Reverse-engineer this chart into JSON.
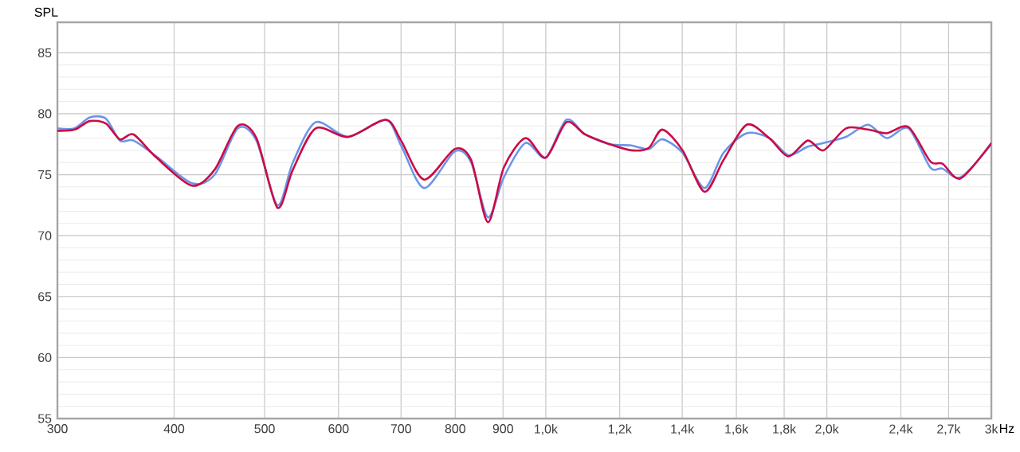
{
  "chart_data": {
    "type": "line",
    "ylabel": "SPL",
    "log": "x",
    "grid": true,
    "xlim": [
      300,
      3000
    ],
    "ylim": [
      55,
      87.5
    ],
    "xticks": [
      300,
      400,
      500,
      600,
      700,
      800,
      900,
      {
        "value": 1000,
        "label": "1,0k"
      },
      {
        "value": 1200,
        "label": "1,2k"
      },
      {
        "value": 1400,
        "label": "1,4k"
      },
      {
        "value": 1600,
        "label": "1,6k"
      },
      {
        "value": 1800,
        "label": "1,8k"
      },
      {
        "value": 2000,
        "label": "2,0k"
      },
      {
        "value": 2400,
        "label": "2,4k"
      },
      {
        "value": 2700,
        "label": "2,7k"
      },
      {
        "value": 3000,
        "label": "3k"
      }
    ],
    "xlabel": "Hz",
    "yticks": [
      55,
      60,
      65,
      70,
      75,
      80,
      85
    ],
    "x": [
      300,
      313,
      325,
      338,
      350,
      362,
      383,
      418,
      442,
      468,
      490,
      516,
      536,
      567,
      614,
      674,
      700,
      741,
      799,
      832,
      867,
      902,
      951,
      1000,
      1052,
      1102,
      1171,
      1234,
      1289,
      1333,
      1401,
      1479,
      1550,
      1641,
      1735,
      1819,
      1908,
      1984,
      2096,
      2213,
      2318,
      2446,
      2580,
      2659,
      2782,
      3000
    ],
    "series": [
      {
        "color": "#6b95e8",
        "values": [
          78.8,
          78.8,
          79.7,
          79.6,
          77.8,
          77.8,
          76.5,
          74.3,
          75.0,
          78.8,
          77.8,
          72.5,
          76.0,
          79.3,
          78.1,
          79.5,
          77.4,
          73.9,
          76.9,
          76.0,
          71.5,
          74.8,
          77.6,
          76.4,
          79.5,
          78.3,
          77.5,
          77.4,
          77.1,
          77.9,
          76.8,
          73.9,
          76.8,
          78.4,
          78.0,
          76.6,
          77.3,
          77.6,
          78.1,
          79.1,
          78.0,
          78.8,
          75.6,
          75.5,
          74.8,
          77.5
        ]
      },
      {
        "color": "#cc0a46",
        "values": [
          78.6,
          78.7,
          79.4,
          79.2,
          77.9,
          78.3,
          76.4,
          74.1,
          75.4,
          79.0,
          78.0,
          72.3,
          75.4,
          78.8,
          78.1,
          79.5,
          77.8,
          74.6,
          77.1,
          76.2,
          71.1,
          75.6,
          78.0,
          76.4,
          79.3,
          78.3,
          77.5,
          77.0,
          77.2,
          78.7,
          77.0,
          73.6,
          76.2,
          79.1,
          78.0,
          76.5,
          77.8,
          77.0,
          78.8,
          78.7,
          78.4,
          78.9,
          76.1,
          75.9,
          74.7,
          77.6
        ]
      }
    ]
  }
}
